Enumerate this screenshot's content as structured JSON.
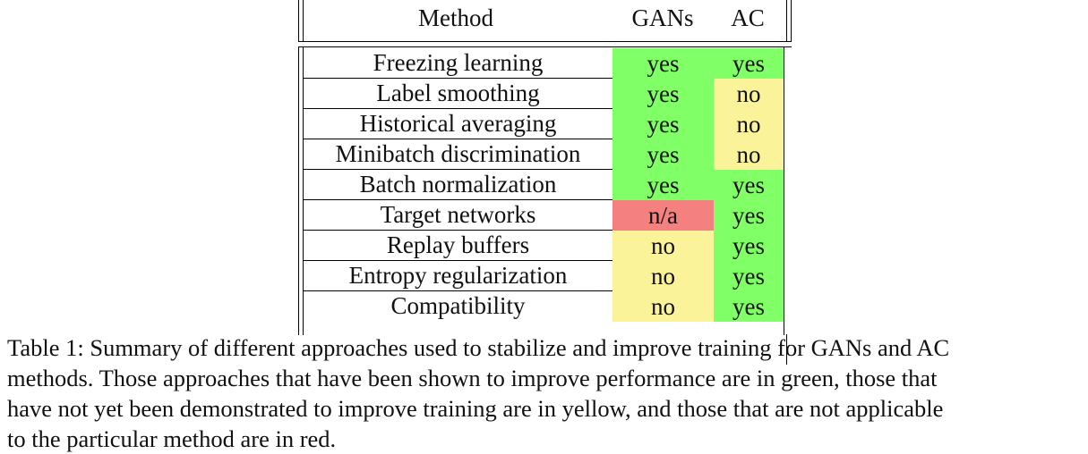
{
  "table": {
    "headers": {
      "method": "Method",
      "gans": "GANs",
      "ac": "AC"
    },
    "rows": [
      {
        "method": "Freezing learning",
        "gans": "yes",
        "ac": "yes"
      },
      {
        "method": "Label smoothing",
        "gans": "yes",
        "ac": "no"
      },
      {
        "method": "Historical averaging",
        "gans": "yes",
        "ac": "no"
      },
      {
        "method": "Minibatch discrimination",
        "gans": "yes",
        "ac": "no"
      },
      {
        "method": "Batch normalization",
        "gans": "yes",
        "ac": "yes"
      },
      {
        "method": "Target networks",
        "gans": "n/a",
        "ac": "yes"
      },
      {
        "method": "Replay buffers",
        "gans": "no",
        "ac": "yes"
      },
      {
        "method": "Entropy regularization",
        "gans": "no",
        "ac": "yes"
      },
      {
        "method": "Compatibility",
        "gans": "no",
        "ac": "yes"
      }
    ],
    "colors": {
      "yes": "#80ff66",
      "no": "#fbf39a",
      "n/a": "#f48080"
    }
  },
  "caption": {
    "lines": [
      "Table 1: Summary of different approaches used to stabilize and improve training for GANs and AC",
      "methods.  Those approaches that have been shown to improve performance are in green, those that",
      "have not yet been demonstrated to improve training are in yellow, and those that are not applicable",
      "to the particular method are in red."
    ]
  }
}
